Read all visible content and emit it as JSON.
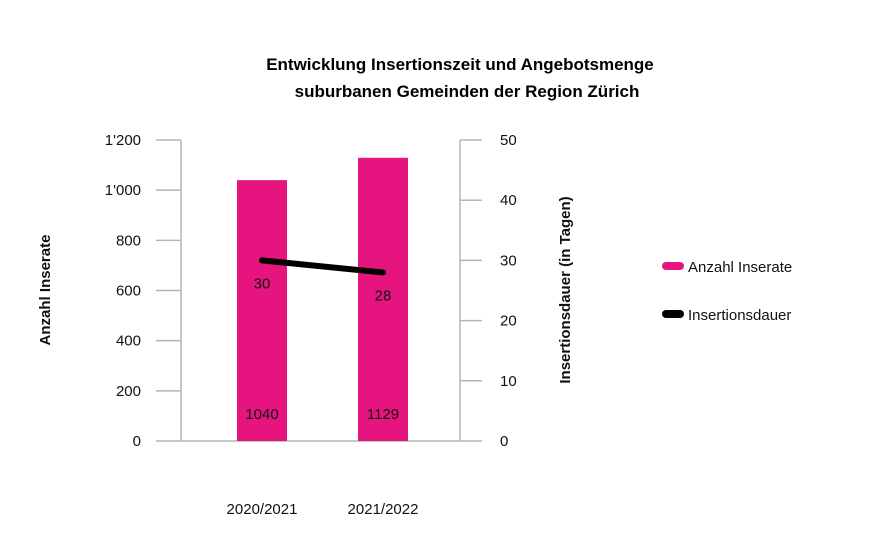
{
  "chart_data": {
    "type": "bar",
    "title_lines": [
      "Entwicklung Insertionszeit und Angebotsmenge",
      "suburbanen Gemeinden der Region Zürich"
    ],
    "categories": [
      "2020/2021",
      "2021/2022"
    ],
    "series": [
      {
        "name": "Anzahl Inserate",
        "type": "bar",
        "axis": "left",
        "values": [
          1040,
          1129
        ],
        "value_labels": [
          "1040",
          "1129"
        ],
        "color": "#E6147E"
      },
      {
        "name": "Insertionsdauer",
        "type": "line",
        "axis": "right",
        "values": [
          30,
          28
        ],
        "value_labels": [
          "30",
          "28"
        ],
        "color": "#000000"
      }
    ],
    "y_left": {
      "label": "Anzahl Inserate",
      "range": [
        0,
        1200
      ],
      "ticks": [
        0,
        200,
        400,
        600,
        800,
        1000,
        1200
      ],
      "tick_labels": [
        "0",
        "200",
        "400",
        "600",
        "800",
        "1'000",
        "1'200"
      ]
    },
    "y_right": {
      "label": "Insertionsdauer (in Tagen)",
      "range": [
        0,
        50
      ],
      "ticks": [
        0,
        10,
        20,
        30,
        40,
        50
      ],
      "tick_labels": [
        "0",
        "10",
        "20",
        "30",
        "40",
        "50"
      ]
    },
    "grid": false,
    "legend_position": "right"
  }
}
